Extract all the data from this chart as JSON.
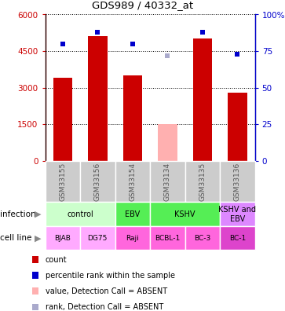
{
  "title": "GDS989 / 40332_at",
  "samples": [
    "GSM33155",
    "GSM33156",
    "GSM33154",
    "GSM33134",
    "GSM33135",
    "GSM33136"
  ],
  "bar_values": [
    3400,
    5100,
    3500,
    1500,
    5000,
    2800
  ],
  "bar_absent": [
    false,
    false,
    false,
    true,
    false,
    false
  ],
  "bar_color_present": "#cc0000",
  "bar_color_absent": "#ffb0b0",
  "dot_values": [
    80,
    88,
    80,
    72,
    88,
    73
  ],
  "dot_absent": [
    false,
    false,
    false,
    true,
    false,
    false
  ],
  "dot_color_present": "#0000cc",
  "dot_color_absent": "#aaaacc",
  "ylim_left": [
    0,
    6000
  ],
  "ylim_right": [
    0,
    100
  ],
  "yticks_left": [
    0,
    1500,
    3000,
    4500,
    6000
  ],
  "yticks_right": [
    0,
    25,
    50,
    75,
    100
  ],
  "ytick_labels_left": [
    "0",
    "1500",
    "3000",
    "4500",
    "6000"
  ],
  "ytick_labels_right": [
    "0",
    "25",
    "50",
    "75",
    "100%"
  ],
  "infection_groups": [
    {
      "label": "control",
      "cols": [
        0,
        1
      ],
      "color": "#ccffcc"
    },
    {
      "label": "EBV",
      "cols": [
        2
      ],
      "color": "#55ee55"
    },
    {
      "label": "KSHV",
      "cols": [
        3,
        4
      ],
      "color": "#55ee55"
    },
    {
      "label": "KSHV and\nEBV",
      "cols": [
        5
      ],
      "color": "#dd88ff"
    }
  ],
  "cell_line_data": [
    {
      "label": "BJAB",
      "col": 0,
      "color": "#ffaaff"
    },
    {
      "label": "DG75",
      "col": 1,
      "color": "#ffaaff"
    },
    {
      "label": "Raji",
      "col": 2,
      "color": "#ff66dd"
    },
    {
      "label": "BCBL-1",
      "col": 3,
      "color": "#ff66dd"
    },
    {
      "label": "BC-3",
      "col": 4,
      "color": "#ff66dd"
    },
    {
      "label": "BC-1",
      "col": 5,
      "color": "#dd44cc"
    }
  ],
  "legend_items": [
    {
      "label": "count",
      "color": "#cc0000"
    },
    {
      "label": "percentile rank within the sample",
      "color": "#0000cc"
    },
    {
      "label": "value, Detection Call = ABSENT",
      "color": "#ffb0b0"
    },
    {
      "label": "rank, Detection Call = ABSENT",
      "color": "#aaaacc"
    }
  ],
  "sample_label_color": "#555555",
  "left_axis_color": "#cc0000",
  "right_axis_color": "#0000cc",
  "grid_color": "black",
  "bg_color": "white"
}
